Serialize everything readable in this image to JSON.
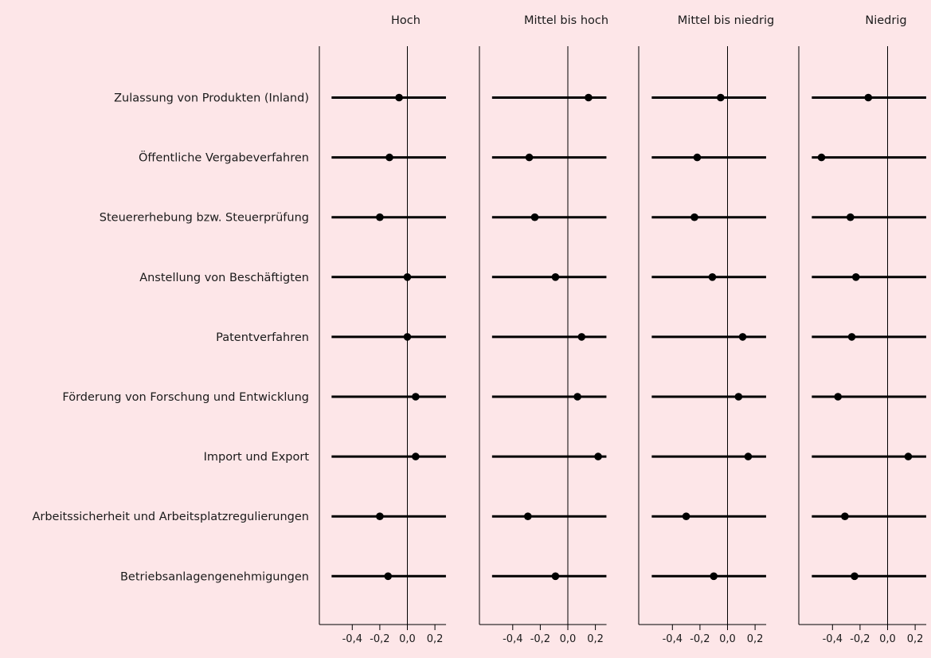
{
  "chart_data": {
    "type": "forest",
    "panels": [
      "Hoch",
      "Mittel bis hoch",
      "Mittel bis niedrig",
      "Niedrig"
    ],
    "categories": [
      "Zulassung von Produkten (Inland)",
      "Öffentliche Vergabeverfahren",
      "Steuererhebung bzw. Steuerprüfung",
      "Anstellung von Beschäftigten",
      "Patentverfahren",
      "Förderung von Forschung und Entwicklung",
      "Import und Export ",
      "Arbeitssicherheit und Arbeitsplatzregulierungen",
      "Betriebsanlagengenehmigungen"
    ],
    "series": [
      {
        "panel": "Hoch",
        "estimates": [
          -0.06,
          -0.13,
          -0.2,
          0.0,
          0.0,
          0.06,
          0.06,
          -0.2,
          -0.14
        ],
        "ci_low": -0.55,
        "ci_high": 0.28
      },
      {
        "panel": "Mittel bis hoch",
        "estimates": [
          0.15,
          -0.28,
          -0.24,
          -0.09,
          0.1,
          0.07,
          0.22,
          -0.29,
          -0.09
        ],
        "ci_low": -0.55,
        "ci_high": 0.28
      },
      {
        "panel": "Mittel bis niedrig",
        "estimates": [
          -0.05,
          -0.22,
          -0.24,
          -0.11,
          0.11,
          0.08,
          0.15,
          -0.3,
          -0.1
        ],
        "ci_low": -0.55,
        "ci_high": 0.28
      },
      {
        "panel": "Niedrig",
        "estimates": [
          -0.14,
          -0.48,
          -0.27,
          -0.23,
          -0.26,
          -0.36,
          0.15,
          -0.31,
          -0.24
        ],
        "ci_low": -0.55,
        "ci_high": 0.28
      }
    ],
    "xticks": [
      -0.4,
      -0.2,
      0.0,
      0.2
    ],
    "xtick_labels": [
      "-0,4",
      "-0,2",
      "0,0",
      "0,2"
    ],
    "xlim": [
      -0.63,
      0.35
    ],
    "reference_line": 0.0,
    "xlabel": "",
    "ylabel": "",
    "grid": false,
    "colors": {
      "background": "#fde6e8",
      "ink": "#000000",
      "text": "#1a1a1a"
    }
  }
}
